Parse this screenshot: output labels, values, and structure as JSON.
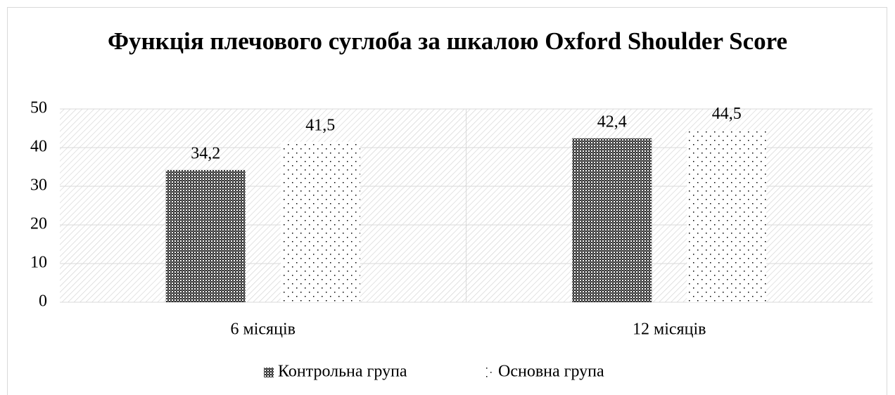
{
  "chart_data": {
    "type": "bar",
    "title": "Функція плечового суглоба за шкалою Oxford Shoulder Score",
    "categories": [
      "6 місяців",
      "12 місяців"
    ],
    "series": [
      {
        "name": "Контрольна група",
        "color": "#333333",
        "values": [
          34.2,
          42.4
        ],
        "value_labels": [
          "34,2",
          "42,4"
        ]
      },
      {
        "name": "Основна група",
        "color": "#000000",
        "values": [
          41.5,
          44.5
        ],
        "value_labels": [
          "41,5",
          "44,5"
        ]
      }
    ],
    "ylim": [
      0,
      50
    ],
    "yticks": [
      0,
      10,
      20,
      30,
      40,
      50
    ],
    "grid": true,
    "legend": "bottom"
  }
}
